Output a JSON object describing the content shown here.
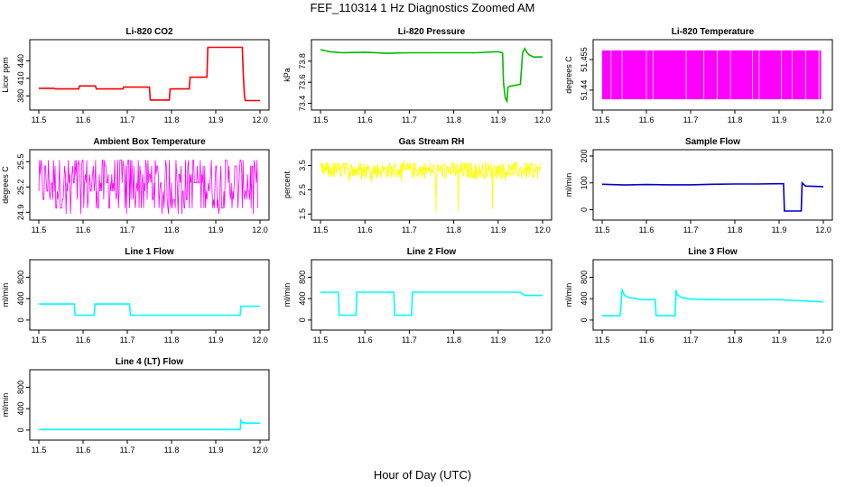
{
  "figure": {
    "title": "FEF_110314  1 Hz Diagnostics Zoomed AM",
    "xlabel": "Hour of Day (UTC)"
  },
  "chart_data": [
    {
      "type": "line",
      "title": "Li-820 CO2",
      "ylabel": "Licor ppm",
      "color": "#ff0000",
      "xlim": [
        11.5,
        12.0
      ],
      "ylim": [
        362,
        470
      ],
      "xticks": [
        11.5,
        11.6,
        11.7,
        11.8,
        11.9,
        12.0
      ],
      "yticks": [
        380,
        410,
        440
      ],
      "x": [
        11.5,
        11.535,
        11.537,
        11.59,
        11.592,
        11.628,
        11.63,
        11.69,
        11.692,
        11.75,
        11.752,
        11.795,
        11.797,
        11.84,
        11.842,
        11.88,
        11.882,
        11.96,
        11.962,
        11.965,
        11.967,
        12.0
      ],
      "y": [
        393,
        393,
        392,
        392,
        397,
        397,
        392,
        392,
        395,
        395,
        373,
        373,
        392,
        392,
        412,
        412,
        463,
        463,
        420,
        380,
        372,
        372
      ]
    },
    {
      "type": "line",
      "title": "Li-820 Pressure",
      "ylabel": "kPa",
      "color": "#00bb00",
      "xlim": [
        11.5,
        12.0
      ],
      "ylim": [
        73.37,
        73.97
      ],
      "xticks": [
        11.5,
        11.6,
        11.7,
        11.8,
        11.9,
        12.0
      ],
      "yticks": [
        73.4,
        73.6,
        73.8
      ],
      "x": [
        11.5,
        11.52,
        11.55,
        11.6,
        11.65,
        11.7,
        11.75,
        11.8,
        11.85,
        11.9,
        11.91,
        11.912,
        11.916,
        11.92,
        11.922,
        11.925,
        11.95,
        11.952,
        11.955,
        11.96,
        11.965,
        11.97,
        11.98,
        12.0
      ],
      "y": [
        73.91,
        73.89,
        73.88,
        73.885,
        73.875,
        73.88,
        73.88,
        73.88,
        73.88,
        73.89,
        73.88,
        73.6,
        73.45,
        73.42,
        73.55,
        73.56,
        73.58,
        73.7,
        73.88,
        73.92,
        73.88,
        73.86,
        73.84,
        73.84
      ]
    },
    {
      "type": "line",
      "title": "Li-820 Temperature",
      "ylabel": "degrees C",
      "color": "#ff00ff",
      "xlim": [
        11.5,
        12.0
      ],
      "ylim": [
        51.432,
        51.463
      ],
      "xticks": [
        11.5,
        11.6,
        11.7,
        11.8,
        11.9,
        12.0
      ],
      "yticks": [
        51.44,
        51.455
      ]
    },
    {
      "type": "line",
      "title": "Ambient Box Temperature",
      "ylabel": "degrees C",
      "color": "#ff00ff",
      "xlim": [
        11.5,
        12.0
      ],
      "ylim": [
        24.85,
        25.6
      ],
      "xticks": [
        11.5,
        11.6,
        11.7,
        11.8,
        11.9,
        12.0
      ],
      "yticks": [
        24.9,
        25.2,
        25.5
      ]
    },
    {
      "type": "line",
      "title": "Gas Stream RH",
      "ylabel": "percent",
      "color": "#ffff00",
      "xlim": [
        11.5,
        12.0
      ],
      "ylim": [
        1.4,
        4.0
      ],
      "xticks": [
        11.5,
        11.6,
        11.7,
        11.8,
        11.9,
        12.0
      ],
      "yticks": [
        1.5,
        2.5,
        3.5
      ]
    },
    {
      "type": "line",
      "title": "Sample Flow",
      "ylabel": "ml/min",
      "color": "#0000cc",
      "xlim": [
        11.5,
        12.0
      ],
      "ylim": [
        -25,
        210
      ],
      "xticks": [
        11.5,
        11.6,
        11.7,
        11.8,
        11.9,
        12.0
      ],
      "yticks": [
        0,
        100,
        200
      ],
      "x": [
        11.5,
        11.55,
        11.6,
        11.65,
        11.7,
        11.75,
        11.8,
        11.85,
        11.9,
        11.91,
        11.912,
        11.95,
        11.952,
        11.96,
        12.0
      ],
      "y": [
        95,
        92,
        94,
        93,
        93,
        95,
        96,
        96,
        97,
        97,
        -5,
        -5,
        100,
        88,
        86
      ]
    },
    {
      "type": "line",
      "title": "Line 1 Flow",
      "ylabel": "ml/min",
      "color": "#00ffff",
      "xlim": [
        11.5,
        12.0
      ],
      "ylim": [
        -120,
        1060
      ],
      "xticks": [
        11.5,
        11.6,
        11.7,
        11.8,
        11.9,
        12.0
      ],
      "yticks": [
        0,
        400,
        800
      ],
      "x": [
        11.5,
        11.58,
        11.582,
        11.625,
        11.627,
        11.705,
        11.707,
        11.955,
        11.957,
        12.0
      ],
      "y": [
        300,
        300,
        90,
        90,
        300,
        300,
        90,
        90,
        260,
        260
      ]
    },
    {
      "type": "line",
      "title": "Line 2 Flow",
      "ylabel": "ml/min",
      "color": "#00ffff",
      "xlim": [
        11.5,
        12.0
      ],
      "ylim": [
        -120,
        1060
      ],
      "xticks": [
        11.5,
        11.6,
        11.7,
        11.8,
        11.9,
        12.0
      ],
      "yticks": [
        0,
        400,
        800
      ],
      "x": [
        11.5,
        11.54,
        11.542,
        11.58,
        11.582,
        11.665,
        11.667,
        11.705,
        11.707,
        11.95,
        11.96,
        12.0
      ],
      "y": [
        520,
        520,
        90,
        90,
        520,
        520,
        90,
        90,
        520,
        520,
        460,
        460
      ]
    },
    {
      "type": "line",
      "title": "Line 3 Flow",
      "ylabel": "ml/min",
      "color": "#00ffff",
      "xlim": [
        11.5,
        12.0
      ],
      "ylim": [
        -120,
        1060
      ],
      "xticks": [
        11.5,
        11.6,
        11.7,
        11.8,
        11.9,
        12.0
      ],
      "yticks": [
        0,
        400,
        800
      ],
      "x": [
        11.5,
        11.54,
        11.542,
        11.545,
        11.55,
        11.56,
        11.58,
        11.585,
        11.62,
        11.622,
        11.665,
        11.667,
        11.67,
        11.68,
        11.7,
        11.75,
        11.9,
        11.95,
        12.0
      ],
      "y": [
        80,
        80,
        200,
        560,
        470,
        420,
        400,
        380,
        380,
        80,
        80,
        560,
        470,
        420,
        390,
        380,
        380,
        360,
        340
      ]
    },
    {
      "type": "line",
      "title": "Line 4 (LT) Flow",
      "ylabel": "ml/min",
      "color": "#00ffff",
      "xlim": [
        11.5,
        12.0
      ],
      "ylim": [
        -120,
        1060
      ],
      "xticks": [
        11.5,
        11.6,
        11.7,
        11.8,
        11.9,
        12.0
      ],
      "yticks": [
        0,
        400,
        800
      ],
      "x": [
        11.5,
        11.955,
        11.957,
        11.96,
        11.97,
        12.0
      ],
      "y": [
        10,
        10,
        180,
        140,
        130,
        130
      ]
    }
  ]
}
